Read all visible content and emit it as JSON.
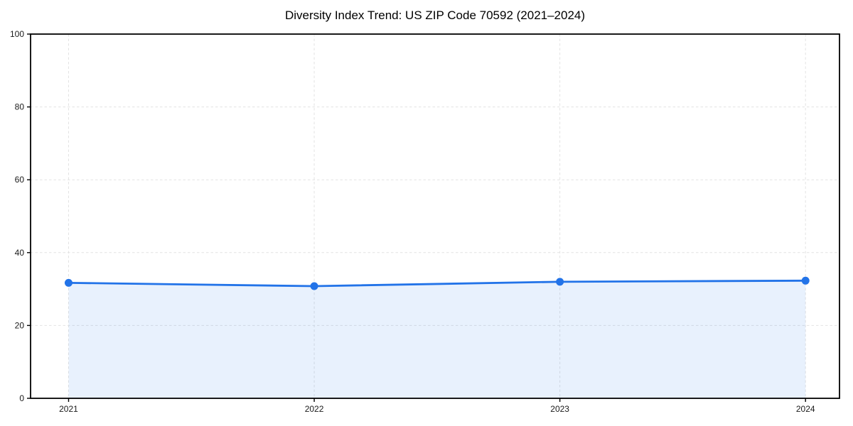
{
  "page": {
    "background": "#ffffff"
  },
  "chart_data": {
    "type": "line",
    "title": "Diversity Index Trend: US ZIP Code 70592 (2021–2024)",
    "x": [
      2021,
      2022,
      2023,
      2024
    ],
    "x_tick_labels": [
      "2021",
      "2022",
      "2023",
      "2024"
    ],
    "series": [
      {
        "name": "Diversity Index",
        "values": [
          31.7,
          30.8,
          32.0,
          32.3
        ]
      }
    ],
    "ylim": [
      0,
      100
    ],
    "yticks": [
      0,
      20,
      40,
      60,
      80,
      100
    ],
    "ytick_labels": [
      "0",
      "20",
      "40",
      "60",
      "80",
      "100"
    ],
    "xlabel": "",
    "ylabel": "",
    "legend_position": "none",
    "grid": {
      "show": true,
      "style": "dashed",
      "color": "#e3e3e3"
    },
    "area_fill_to_zero": true,
    "colors": {
      "line": "#2273e8",
      "marker": "#2273e8",
      "fill": "#2273e8",
      "fill_opacity": 0.1,
      "spine": "#000000",
      "tick_label": "#1a1a1a",
      "title": "#000000"
    }
  }
}
